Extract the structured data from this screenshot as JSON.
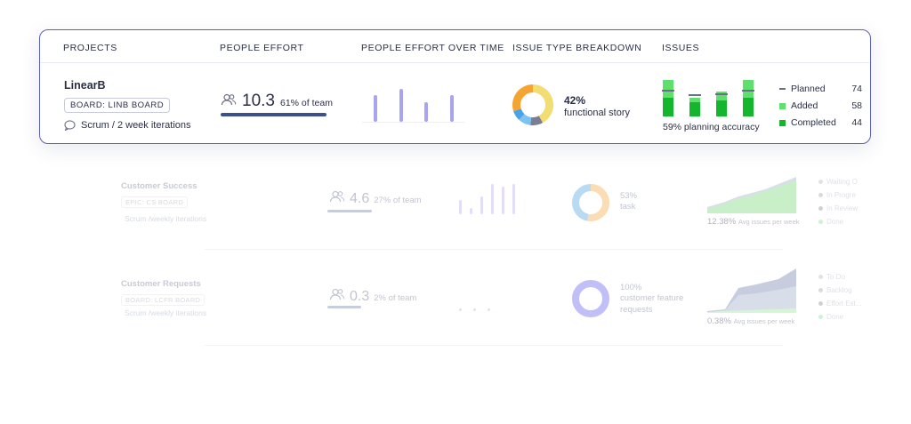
{
  "headers": {
    "projects": "PROJECTS",
    "people_effort": "PEOPLE EFFORT",
    "effort_over_time": "PEOPLE EFFORT OVER TIME",
    "issue_type": "ISSUE TYPE BREAKDOWN",
    "issues": "ISSUES"
  },
  "main_project": {
    "name": "LinearB",
    "board": "BOARD: LINB BOARD",
    "iterations": "Scrum / 2 week iterations",
    "effort_value": "10.3",
    "effort_pct": "61% of team",
    "effort_fraction": 0.61,
    "breakdown_pct": "42%",
    "breakdown_type": "functional story",
    "accuracy": "59% planning accuracy",
    "legend": [
      {
        "label": "Planned",
        "value": "74",
        "color": "#6b6f86"
      },
      {
        "label": "Added",
        "value": "58",
        "color": "#5fe06c"
      },
      {
        "label": "Completed",
        "value": "44",
        "color": "#13b62c"
      }
    ],
    "effort_series": [
      0.62,
      0.78,
      0.45,
      0.62
    ],
    "issues_bars": [
      {
        "total": 1.0,
        "completed": 0.5,
        "planned": 0.72
      },
      {
        "total": 0.52,
        "completed": 0.4,
        "planned": 0.62
      },
      {
        "total": 0.68,
        "completed": 0.44,
        "planned": 0.64
      },
      {
        "total": 1.0,
        "completed": 0.5,
        "planned": 0.72
      }
    ],
    "donut_segments": [
      {
        "value": 42,
        "color": "#f3dc72"
      },
      {
        "value": 10,
        "color": "#7b7e92"
      },
      {
        "value": 10,
        "color": "#7cc3f2"
      },
      {
        "value": 8,
        "color": "#4aa2e8"
      },
      {
        "value": 30,
        "color": "#f6a431"
      }
    ]
  },
  "rows": [
    {
      "name": "Customer Success",
      "board": "EPIC: CS BOARD",
      "iterations": "Scrum /weekly iterations",
      "effort_value": "4.6",
      "effort_pct": "27% of team",
      "breakdown_pct": "53%",
      "breakdown_type": "task",
      "avg_value": "12.38%",
      "avg_text": "Avg issues per week",
      "effort_series": [
        0.45,
        0.2,
        0.55,
        0.95,
        0.85,
        0.95
      ],
      "legend": [
        {
          "label": "Waiting O",
          "color": "#c8cbd6"
        },
        {
          "label": "In Progre",
          "color": "#b8bcca"
        },
        {
          "label": "In Review",
          "color": "#a9adbd"
        },
        {
          "label": "Done",
          "color": "#a9e6b0"
        }
      ],
      "donut_segments": [
        {
          "value": 53,
          "color": "#f6c27a"
        },
        {
          "value": 47,
          "color": "#7fbcea"
        }
      ]
    },
    {
      "name": "Customer Requests",
      "board": "BOARD: LCFR BOARD",
      "iterations": "Scrum /weekly iterations",
      "effort_value": "0.3",
      "effort_pct": "2% of team",
      "breakdown_pct": "100%",
      "breakdown_type": "customer feature requests",
      "breakdown_type_line1": "customer feature",
      "breakdown_type_line2": "requests",
      "avg_value": "0.38%",
      "avg_text": "Avg issues per week",
      "effort_series": [
        0.08,
        0.08,
        0.08
      ],
      "legend": [
        {
          "label": "To Do",
          "color": "#c8cbd6"
        },
        {
          "label": "Backlog",
          "color": "#b8bcca"
        },
        {
          "label": "Effort Est...",
          "color": "#a9adbd"
        },
        {
          "label": "Done",
          "color": "#a9e6b0"
        }
      ],
      "donut_segments": [
        {
          "value": 100,
          "color": "#8e8cf2"
        }
      ]
    }
  ]
}
